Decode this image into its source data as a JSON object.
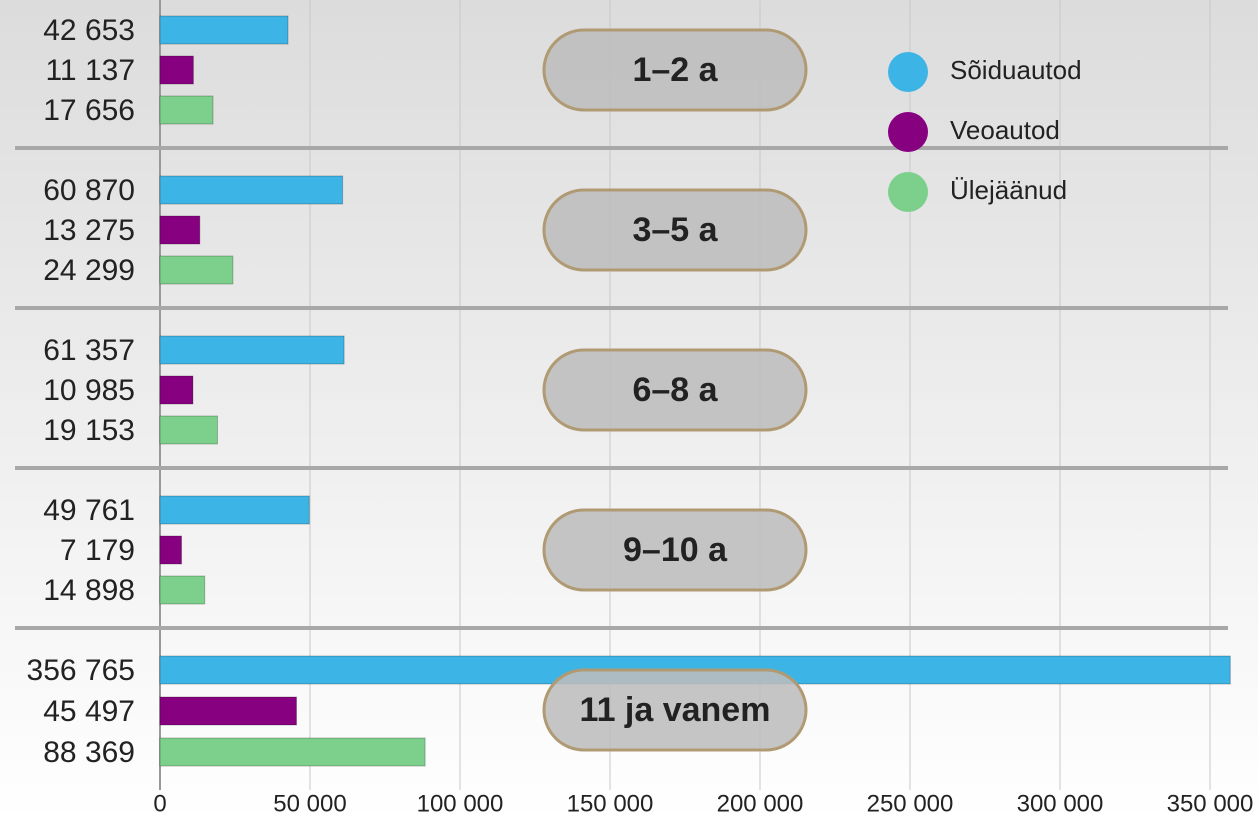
{
  "chart_data": {
    "type": "grouped-hbar",
    "categories": [
      "1–2 a",
      "3–5 a",
      "6–8 a",
      "9–10 a",
      "11 ja vanem"
    ],
    "series": [
      {
        "name": "Sõiduautod",
        "color": "#3db4e6",
        "values": [
          42653,
          60870,
          61357,
          49761,
          356765
        ],
        "value_labels": [
          "42 653",
          "60 870",
          "61 357",
          "49 761",
          "356 765"
        ]
      },
      {
        "name": "Veoautod",
        "color": "#870080",
        "values": [
          11137,
          13275,
          10985,
          7179,
          45497
        ],
        "value_labels": [
          "11 137",
          "13 275",
          "10 985",
          "7 179",
          "45 497"
        ]
      },
      {
        "name": "Ülejäänud",
        "color": "#7dd08c",
        "values": [
          17656,
          24299,
          19153,
          14898,
          88369
        ],
        "value_labels": [
          "17 656",
          "24 299",
          "19 153",
          "14 898",
          "88 369"
        ]
      }
    ],
    "xlim": [
      0,
      366000
    ],
    "xticks": [
      0,
      {
        "value": 50000,
        "label": "50 000"
      },
      {
        "value": 100000,
        "label": "100 000"
      },
      {
        "value": 150000,
        "label": "150 000"
      },
      {
        "value": 200000,
        "label": "200 000"
      },
      {
        "value": 250000,
        "label": "250 000"
      },
      {
        "value": 300000,
        "label": "300 000"
      },
      {
        "value": 350000,
        "label": "350 000"
      }
    ],
    "grid": true
  }
}
